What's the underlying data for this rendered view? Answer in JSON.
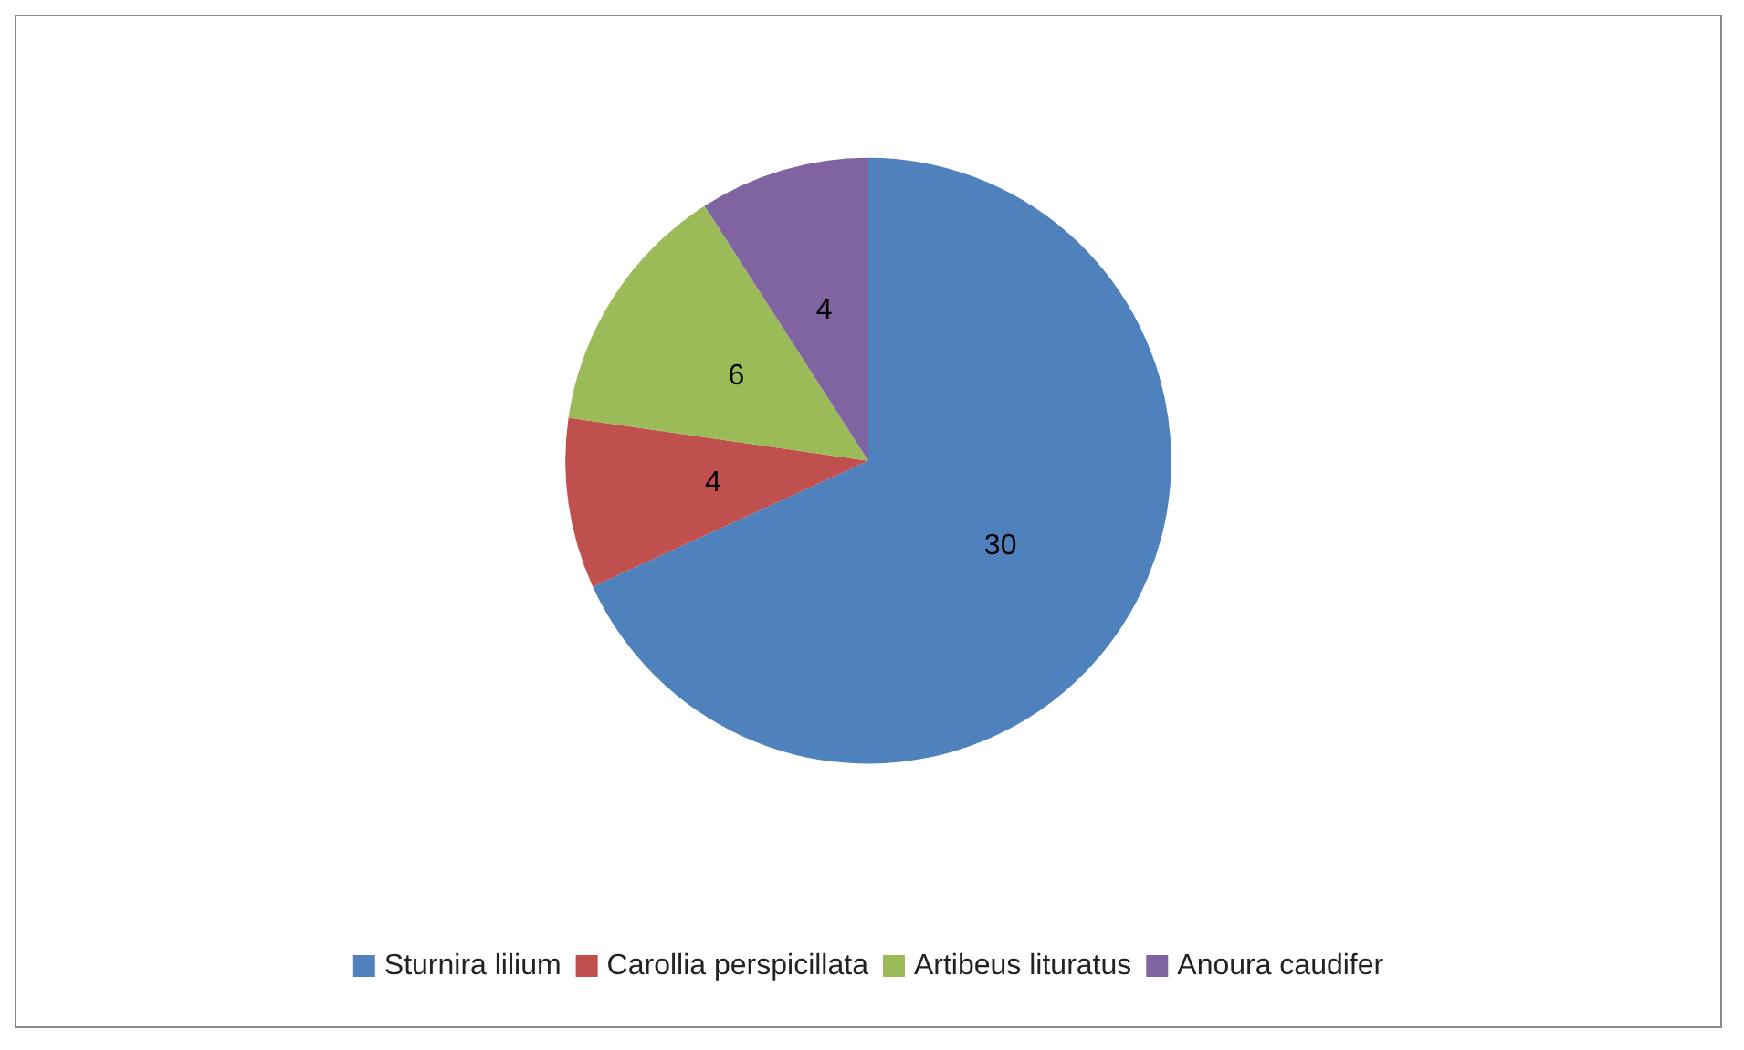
{
  "chart_data": {
    "type": "pie",
    "categories": [
      "Sturnira lilium",
      "Carollia perspicillata",
      "Artibeus lituratus",
      "Anoura caudifer"
    ],
    "values": [
      30,
      4,
      6,
      4
    ],
    "colors": [
      "#4f81bd",
      "#c0504d",
      "#9bbb59",
      "#8064a2"
    ],
    "data_labels": true,
    "legend": "bottom"
  }
}
